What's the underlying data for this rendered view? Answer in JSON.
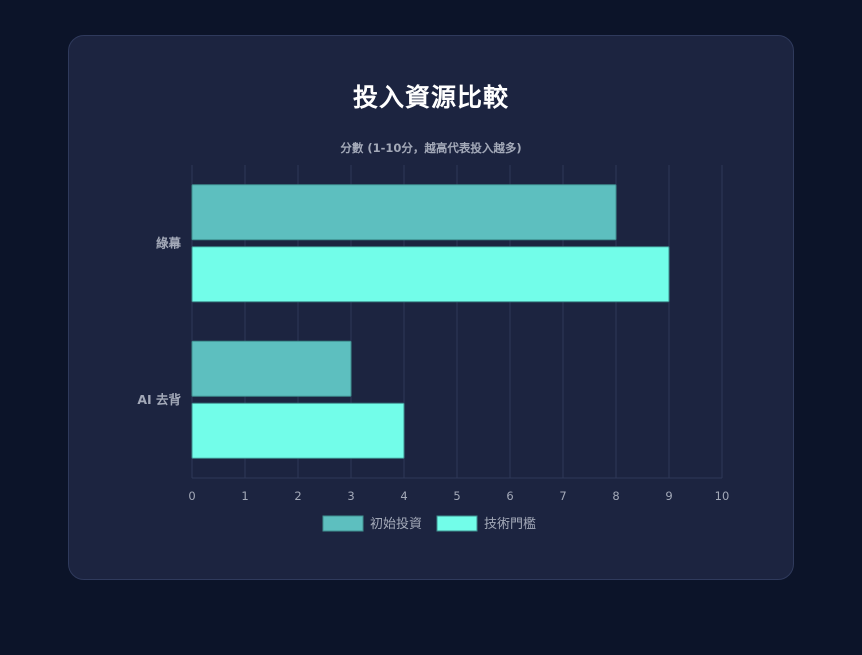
{
  "page": {
    "title": "投入資源比較"
  },
  "chart_data": {
    "type": "bar",
    "orientation": "horizontal",
    "title": "投入資源比較",
    "xlabel": "分數 (1-10分，越高代表投入越多)",
    "ylabel": "",
    "categories": [
      "綠幕",
      "AI 去背"
    ],
    "series": [
      {
        "name": "初始投資",
        "values": [
          8,
          3
        ],
        "color": "#5dbfbf"
      },
      {
        "name": "技術門檻",
        "values": [
          9,
          4
        ],
        "color": "#72fde9"
      }
    ],
    "xlim": [
      0,
      10
    ],
    "xticks": [
      "0",
      "1",
      "2",
      "3",
      "4",
      "5",
      "6",
      "7",
      "8",
      "9",
      "10"
    ],
    "grid": true,
    "legend": "bottom"
  }
}
